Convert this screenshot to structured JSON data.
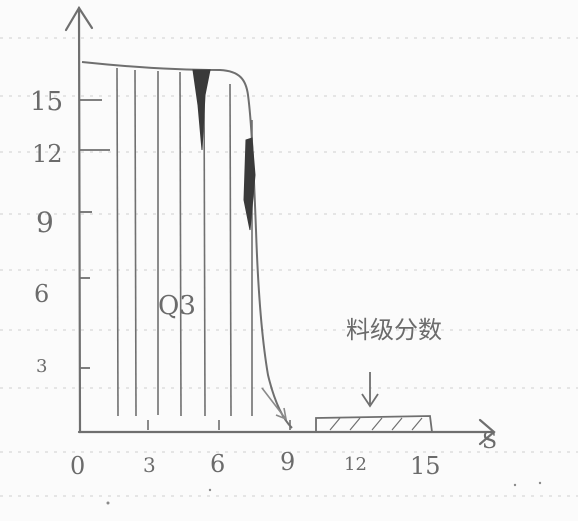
{
  "paper": {
    "background": "#fbfbfb",
    "rule_color": "#c8c8c8",
    "ink_color": "#6f6f6f",
    "dark_ink": "#3a3a3a"
  },
  "diagram": {
    "y_tick_labels": [
      "3",
      "6",
      "9",
      "12",
      "15"
    ],
    "x_tick_labels": [
      "0",
      "3",
      "6",
      "9",
      "12",
      "15"
    ],
    "region_label": "Q3",
    "annotation_label": "料级分数",
    "axis_end_label": "S"
  }
}
